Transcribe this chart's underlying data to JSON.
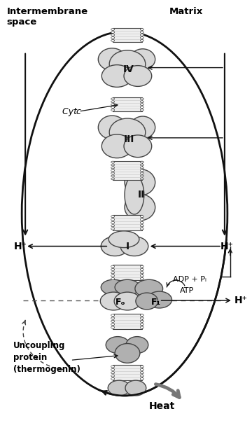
{
  "bg_color": "#ffffff",
  "label_intermembrane": "Intermembrane\nspace",
  "label_matrix": "Matrix",
  "label_IV": "IV",
  "label_III": "III",
  "label_II": "II",
  "label_I": "I",
  "label_cytc": "Cyt c",
  "label_Fo": "Fₒ",
  "label_F1": "F₁",
  "label_adp": "ADP + Pᵢ",
  "label_atp": "ATP",
  "label_hplus_left": "H⁺",
  "label_hplus_right": "H⁺",
  "label_hplus_right2": "H⁺",
  "label_uncoupling": "Uncoupling\nprotein\n(thermogenin)",
  "label_heat": "Heat",
  "protein_fill": "#d8d8d8",
  "protein_fill_dark": "#b0b0b0",
  "protein_edge": "#444444",
  "fig_width": 3.6,
  "fig_height": 6.04
}
